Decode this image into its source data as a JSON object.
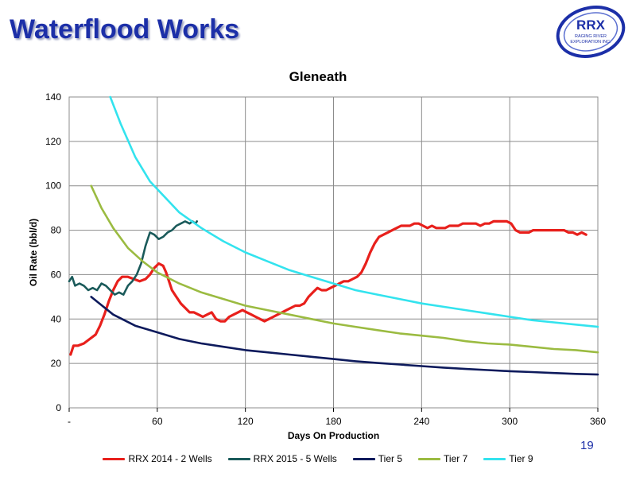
{
  "slide": {
    "title": "Waterflood Works",
    "page_number": "19",
    "logo": {
      "text": "RRX",
      "subtext_line1": "RAGING RIVER",
      "subtext_line2": "EXPLORATION INC.",
      "color": "#1c2fa8"
    }
  },
  "chart_data": {
    "type": "line",
    "title": "Gleneath",
    "xlabel": "Days On Production",
    "ylabel": "Oil Rate (bbl/d)",
    "xlim": [
      0,
      360
    ],
    "ylim": [
      0,
      140
    ],
    "x_ticks": [
      0,
      60,
      120,
      180,
      240,
      300,
      360
    ],
    "x_tick_labels": [
      "-",
      "60",
      "120",
      "180",
      "240",
      "300",
      "360"
    ],
    "y_ticks": [
      0,
      20,
      40,
      60,
      80,
      100,
      120,
      140
    ],
    "grid": true,
    "legend_position": "bottom",
    "series": [
      {
        "name": "RRX 2014 - 2 Wells",
        "color": "#e8201c",
        "points": [
          [
            1,
            24
          ],
          [
            3,
            28
          ],
          [
            6,
            28
          ],
          [
            10,
            29
          ],
          [
            14,
            31
          ],
          [
            18,
            33
          ],
          [
            21,
            37
          ],
          [
            24,
            42
          ],
          [
            27,
            48
          ],
          [
            30,
            53
          ],
          [
            33,
            57
          ],
          [
            36,
            59
          ],
          [
            40,
            59
          ],
          [
            44,
            58
          ],
          [
            48,
            57
          ],
          [
            52,
            58
          ],
          [
            55,
            60
          ],
          [
            58,
            63
          ],
          [
            61,
            65
          ],
          [
            64,
            64
          ],
          [
            66,
            61
          ],
          [
            68,
            57
          ],
          [
            70,
            53
          ],
          [
            73,
            50
          ],
          [
            76,
            47
          ],
          [
            79,
            45
          ],
          [
            82,
            43
          ],
          [
            85,
            43
          ],
          [
            88,
            42
          ],
          [
            91,
            41
          ],
          [
            94,
            42
          ],
          [
            97,
            43
          ],
          [
            100,
            40
          ],
          [
            103,
            39
          ],
          [
            106,
            39
          ],
          [
            109,
            41
          ],
          [
            112,
            42
          ],
          [
            115,
            43
          ],
          [
            118,
            44
          ],
          [
            121,
            43
          ],
          [
            124,
            42
          ],
          [
            127,
            41
          ],
          [
            130,
            40
          ],
          [
            133,
            39
          ],
          [
            136,
            40
          ],
          [
            139,
            41
          ],
          [
            142,
            42
          ],
          [
            145,
            43
          ],
          [
            148,
            44
          ],
          [
            151,
            45
          ],
          [
            154,
            46
          ],
          [
            157,
            46
          ],
          [
            160,
            47
          ],
          [
            163,
            50
          ],
          [
            166,
            52
          ],
          [
            169,
            54
          ],
          [
            172,
            53
          ],
          [
            175,
            53
          ],
          [
            178,
            54
          ],
          [
            181,
            55
          ],
          [
            184,
            56
          ],
          [
            187,
            57
          ],
          [
            190,
            57
          ],
          [
            193,
            58
          ],
          [
            196,
            59
          ],
          [
            199,
            61
          ],
          [
            202,
            65
          ],
          [
            205,
            70
          ],
          [
            208,
            74
          ],
          [
            211,
            77
          ],
          [
            214,
            78
          ],
          [
            217,
            79
          ],
          [
            220,
            80
          ],
          [
            223,
            81
          ],
          [
            226,
            82
          ],
          [
            229,
            82
          ],
          [
            232,
            82
          ],
          [
            235,
            83
          ],
          [
            238,
            83
          ],
          [
            241,
            82
          ],
          [
            244,
            81
          ],
          [
            247,
            82
          ],
          [
            250,
            81
          ],
          [
            253,
            81
          ],
          [
            256,
            81
          ],
          [
            259,
            82
          ],
          [
            262,
            82
          ],
          [
            265,
            82
          ],
          [
            268,
            83
          ],
          [
            271,
            83
          ],
          [
            274,
            83
          ],
          [
            277,
            83
          ],
          [
            280,
            82
          ],
          [
            283,
            83
          ],
          [
            286,
            83
          ],
          [
            289,
            84
          ],
          [
            292,
            84
          ],
          [
            295,
            84
          ],
          [
            298,
            84
          ],
          [
            301,
            83
          ],
          [
            304,
            80
          ],
          [
            307,
            79
          ],
          [
            310,
            79
          ],
          [
            313,
            79
          ],
          [
            316,
            80
          ],
          [
            319,
            80
          ],
          [
            322,
            80
          ],
          [
            325,
            80
          ],
          [
            328,
            80
          ],
          [
            331,
            80
          ],
          [
            334,
            80
          ],
          [
            337,
            80
          ],
          [
            340,
            79
          ],
          [
            343,
            79
          ],
          [
            346,
            78
          ],
          [
            349,
            79
          ],
          [
            352,
            78
          ]
        ]
      },
      {
        "name": "RRX 2015 - 5 Wells",
        "color": "#1a5a5a",
        "points": [
          [
            0,
            57
          ],
          [
            2,
            59
          ],
          [
            4,
            55
          ],
          [
            7,
            56
          ],
          [
            10,
            55
          ],
          [
            13,
            53
          ],
          [
            16,
            54
          ],
          [
            19,
            53
          ],
          [
            22,
            56
          ],
          [
            25,
            55
          ],
          [
            28,
            53
          ],
          [
            31,
            51
          ],
          [
            34,
            52
          ],
          [
            37,
            51
          ],
          [
            40,
            55
          ],
          [
            43,
            57
          ],
          [
            46,
            60
          ],
          [
            49,
            65
          ],
          [
            52,
            73
          ],
          [
            55,
            79
          ],
          [
            58,
            78
          ],
          [
            61,
            76
          ],
          [
            64,
            77
          ],
          [
            67,
            79
          ],
          [
            70,
            80
          ],
          [
            73,
            82
          ],
          [
            76,
            83
          ],
          [
            79,
            84
          ],
          [
            82,
            83
          ],
          [
            84,
            84
          ],
          [
            86,
            83
          ],
          [
            87,
            84
          ]
        ]
      },
      {
        "name": "Tier 5",
        "color": "#0d1a5c",
        "points": [
          [
            15,
            50
          ],
          [
            30,
            42
          ],
          [
            45,
            37
          ],
          [
            60,
            34
          ],
          [
            75,
            31
          ],
          [
            90,
            29
          ],
          [
            105,
            27.5
          ],
          [
            120,
            26
          ],
          [
            135,
            25
          ],
          [
            150,
            24
          ],
          [
            165,
            23
          ],
          [
            180,
            22
          ],
          [
            195,
            21
          ],
          [
            210,
            20.2
          ],
          [
            225,
            19.5
          ],
          [
            240,
            18.8
          ],
          [
            255,
            18.1
          ],
          [
            270,
            17.5
          ],
          [
            285,
            17
          ],
          [
            300,
            16.5
          ],
          [
            315,
            16.1
          ],
          [
            330,
            15.7
          ],
          [
            345,
            15.3
          ],
          [
            360,
            15
          ]
        ]
      },
      {
        "name": "Tier 7",
        "color": "#9bbb41",
        "points": [
          [
            15,
            100
          ],
          [
            22,
            90
          ],
          [
            30,
            81
          ],
          [
            40,
            72
          ],
          [
            50,
            66
          ],
          [
            60,
            61
          ],
          [
            75,
            56
          ],
          [
            90,
            52
          ],
          [
            105,
            49
          ],
          [
            120,
            46
          ],
          [
            135,
            44
          ],
          [
            150,
            42
          ],
          [
            165,
            40
          ],
          [
            180,
            38
          ],
          [
            195,
            36.5
          ],
          [
            210,
            35
          ],
          [
            225,
            33.5
          ],
          [
            240,
            32.5
          ],
          [
            255,
            31.5
          ],
          [
            270,
            30
          ],
          [
            285,
            29
          ],
          [
            300,
            28.5
          ],
          [
            315,
            27.5
          ],
          [
            330,
            26.5
          ],
          [
            345,
            26
          ],
          [
            360,
            25
          ]
        ]
      },
      {
        "name": "Tier 9",
        "color": "#33e3ee",
        "points": [
          [
            28,
            140
          ],
          [
            35,
            128
          ],
          [
            45,
            113
          ],
          [
            55,
            102
          ],
          [
            65,
            95
          ],
          [
            75,
            88
          ],
          [
            90,
            81
          ],
          [
            105,
            75
          ],
          [
            120,
            70
          ],
          [
            135,
            66
          ],
          [
            150,
            62
          ],
          [
            165,
            59
          ],
          [
            180,
            56
          ],
          [
            195,
            53
          ],
          [
            210,
            51
          ],
          [
            225,
            49
          ],
          [
            240,
            47
          ],
          [
            255,
            45.5
          ],
          [
            270,
            44
          ],
          [
            285,
            42.5
          ],
          [
            300,
            41
          ],
          [
            315,
            39.5
          ],
          [
            330,
            38.5
          ],
          [
            345,
            37.5
          ],
          [
            360,
            36.5
          ]
        ]
      }
    ]
  }
}
